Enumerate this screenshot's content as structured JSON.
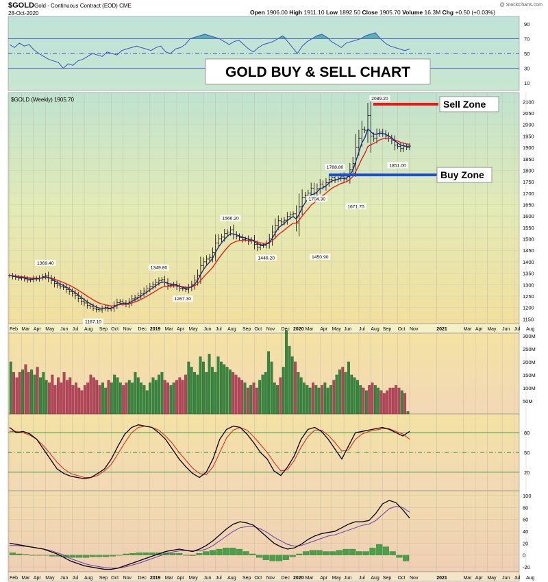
{
  "header": {
    "symbol": "$GOLD",
    "description": "Gold - Continuous Contract (EOD)",
    "exchange": "CME",
    "date": "28-Oct-2020",
    "open_label": "Open",
    "open": "1906.00",
    "high_label": "High",
    "high": "1911.10",
    "low_label": "Low",
    "low": "1892.50",
    "close_label": "Close",
    "close": "1905.70",
    "volume_label": "Volume",
    "volume": "16.3M",
    "chg_label": "Chg",
    "chg": "+0.50 (+0.03%)",
    "watermark": "@ StockCharts.com"
  },
  "overlay": {
    "title": "GOLD BUY & SELL CHART",
    "sell_label": "Sell Zone",
    "buy_label": "Buy Zone",
    "price_legend": "$GOLD (Weekly) 1905.70"
  },
  "colors": {
    "up_bar": "#2e8b3a",
    "down_bar": "#c0405a",
    "ma_fast": "#1f2a8a",
    "ma_slow": "#e02020",
    "sell_line": "#e81818",
    "buy_line": "#1a4fd6",
    "rsi_line": "#3a4fc0",
    "rsi_fill": "#3aa0a0",
    "stoch_k": "#000000",
    "stoch_d": "#e02020",
    "macd_line": "#000000",
    "signal_line": "#6a3ab0",
    "hist": "#4aa04a"
  },
  "chart_data": [
    {
      "type": "line",
      "panel": "rsi",
      "y_ticks": [
        10,
        30,
        50,
        70,
        90
      ],
      "ylim": [
        0,
        100
      ],
      "levels": [
        30,
        50,
        70
      ],
      "values": [
        62,
        58,
        64,
        60,
        62,
        55,
        50,
        46,
        42,
        40,
        38,
        30,
        36,
        34,
        40,
        42,
        46,
        50,
        48,
        46,
        52,
        50,
        48,
        54,
        56,
        58,
        60,
        58,
        56,
        54,
        58,
        60,
        52,
        50,
        56,
        58,
        62,
        70,
        72,
        74,
        76,
        74,
        72,
        70,
        66,
        62,
        66,
        68,
        62,
        56,
        52,
        58,
        62,
        64,
        66,
        70,
        74,
        66,
        58,
        50,
        60,
        66,
        70,
        74,
        76,
        72,
        66,
        62,
        58,
        64,
        66,
        68,
        70,
        74,
        76,
        78,
        70,
        64,
        60,
        58,
        56,
        54,
        56
      ]
    },
    {
      "type": "candlestick",
      "panel": "price",
      "y_ticks": [
        1150,
        1200,
        1250,
        1300,
        1350,
        1400,
        1450,
        1500,
        1550,
        1600,
        1650,
        1700,
        1750,
        1800,
        1850,
        1900,
        1950,
        2000,
        2050,
        2100
      ],
      "ylim": [
        1130,
        2140
      ],
      "x_ticks": [
        "Feb",
        "Mar",
        "Apr",
        "May",
        "Jun",
        "Jul",
        "Aug",
        "Sep",
        "Oct",
        "Nov",
        "Dec",
        "2019",
        "Mar",
        "Apr",
        "May",
        "Jun",
        "Jul",
        "Aug",
        "Sep",
        "Oct",
        "Nov",
        "Dec",
        "2020",
        "Mar",
        "Apr",
        "May",
        "Jun",
        "Jul",
        "Aug",
        "Sep",
        "Oct",
        "Nov",
        "2021",
        "Mar",
        "Apr",
        "May",
        "Jun",
        "Jul",
        "Aug"
      ],
      "x_tick_weeks": [
        0,
        4,
        8,
        12,
        17,
        21,
        25,
        30,
        34,
        38,
        43,
        47,
        52,
        56,
        60,
        65,
        69,
        73,
        78,
        82,
        86,
        91,
        95,
        99,
        104,
        108,
        112,
        117,
        121,
        125,
        130,
        134,
        143,
        152,
        156,
        160,
        165,
        169,
        173
      ],
      "annotations": [
        {
          "week": 12,
          "value": 1369.4,
          "label": "1369.40"
        },
        {
          "week": 28,
          "value": 1167.1,
          "label": "1167.10"
        },
        {
          "week": 50,
          "value": 1349.8,
          "label": "1349.80"
        },
        {
          "week": 58,
          "value": 1267.3,
          "label": "1267.30"
        },
        {
          "week": 74,
          "value": 1566.2,
          "label": "1566.20"
        },
        {
          "week": 86,
          "value": 1446.2,
          "label": "1446.20"
        },
        {
          "week": 103,
          "value": 1704.3,
          "label": "1704.30"
        },
        {
          "week": 104,
          "value": 1450.9,
          "label": "1450.90"
        },
        {
          "week": 109,
          "value": 1788.8,
          "label": "1788.80"
        },
        {
          "week": 116,
          "value": 1671.7,
          "label": "1671.70"
        },
        {
          "week": 124,
          "value": 2089.2,
          "label": "2089.20"
        },
        {
          "week": 130,
          "value": 1851.0,
          "label": "1851.00"
        }
      ],
      "sell_zone": 2089.2,
      "buy_zone": 1780,
      "closes": [
        1340,
        1335,
        1332,
        1328,
        1330,
        1325,
        1320,
        1322,
        1328,
        1325,
        1330,
        1335,
        1340,
        1328,
        1318,
        1305,
        1298,
        1292,
        1288,
        1278,
        1270,
        1262,
        1252,
        1240,
        1228,
        1220,
        1210,
        1205,
        1198,
        1192,
        1190,
        1196,
        1200,
        1194,
        1198,
        1210,
        1222,
        1226,
        1220,
        1214,
        1225,
        1238,
        1244,
        1252,
        1262,
        1272,
        1282,
        1292,
        1300,
        1310,
        1318,
        1322,
        1310,
        1296,
        1298,
        1302,
        1292,
        1284,
        1282,
        1278,
        1288,
        1300,
        1320,
        1342,
        1384,
        1400,
        1412,
        1420,
        1440,
        1482,
        1500,
        1508,
        1524,
        1530,
        1540,
        1520,
        1512,
        1506,
        1498,
        1500,
        1490,
        1495,
        1476,
        1464,
        1470,
        1472,
        1480,
        1500,
        1530,
        1560,
        1580,
        1574,
        1582,
        1598,
        1606,
        1610,
        1570,
        1640,
        1680,
        1690,
        1700,
        1722,
        1700,
        1720,
        1740,
        1730,
        1746,
        1760,
        1770,
        1760,
        1766,
        1774,
        1762,
        1772,
        1802,
        1830,
        1900,
        1940,
        1980,
        1975,
        2040,
        1950,
        1940,
        1960,
        1968,
        1960,
        1950,
        1940,
        1930,
        1910,
        1905,
        1895,
        1905,
        1900,
        1906
      ]
    },
    {
      "type": "bar",
      "panel": "volume",
      "y_ticks": [
        "50M",
        "100M",
        "150M",
        "200M",
        "250M",
        "300M"
      ],
      "y_tick_values": [
        50,
        100,
        150,
        200,
        250,
        300
      ],
      "ylim": [
        0,
        310
      ],
      "values": [
        200,
        160,
        140,
        160,
        170,
        190,
        160,
        170,
        150,
        180,
        140,
        160,
        130,
        120,
        150,
        110,
        140,
        120,
        160,
        130,
        140,
        110,
        120,
        100,
        90,
        110,
        120,
        150,
        140,
        130,
        110,
        120,
        100,
        130,
        120,
        150,
        140,
        120,
        110,
        120,
        130,
        120,
        160,
        140,
        120,
        110,
        90,
        120,
        140,
        130,
        150,
        160,
        130,
        120,
        110,
        120,
        130,
        140,
        130,
        150,
        200,
        180,
        160,
        150,
        220,
        200,
        160,
        230,
        180,
        160,
        220,
        200,
        190,
        180,
        170,
        160,
        150,
        140,
        130,
        120,
        100,
        110,
        120,
        100,
        130,
        150,
        160,
        240,
        200,
        120,
        110,
        140,
        180,
        320,
        260,
        220,
        200,
        160,
        140,
        120,
        110,
        100,
        120,
        110,
        100,
        110,
        120,
        100,
        110,
        130,
        150,
        170,
        180,
        160,
        200,
        150,
        140,
        130,
        110,
        100,
        90,
        110,
        120,
        110,
        100,
        90,
        80,
        90,
        100,
        100,
        110,
        100,
        90,
        80,
        10
      ]
    },
    {
      "type": "line",
      "panel": "stochastic",
      "y_ticks": [
        20,
        50,
        80
      ],
      "ylim": [
        0,
        100
      ],
      "levels": [
        20,
        50,
        80
      ],
      "k_values": [
        88,
        80,
        82,
        78,
        70,
        55,
        40,
        25,
        18,
        14,
        12,
        10,
        12,
        18,
        25,
        40,
        60,
        78,
        88,
        92,
        90,
        88,
        80,
        70,
        55,
        40,
        28,
        18,
        12,
        20,
        40,
        70,
        85,
        90,
        88,
        78,
        65,
        50,
        40,
        22,
        15,
        28,
        45,
        70,
        85,
        88,
        82,
        70,
        55,
        40,
        60,
        80,
        82,
        84,
        86,
        88,
        85,
        80,
        75,
        82
      ],
      "d_values": [
        82,
        82,
        80,
        76,
        70,
        60,
        48,
        35,
        25,
        18,
        15,
        12,
        12,
        15,
        22,
        32,
        48,
        65,
        80,
        88,
        90,
        88,
        84,
        75,
        64,
        50,
        38,
        26,
        18,
        16,
        28,
        50,
        72,
        84,
        88,
        84,
        74,
        62,
        50,
        35,
        22,
        24,
        38,
        58,
        74,
        84,
        84,
        76,
        65,
        52,
        54,
        70,
        78,
        82,
        84,
        86,
        86,
        82,
        78,
        70
      ]
    },
    {
      "type": "line",
      "panel": "macd",
      "y_ticks": [
        -20,
        0,
        20,
        40,
        60,
        80,
        100
      ],
      "ylim": [
        -28,
        108
      ],
      "macd_values": [
        20,
        18,
        16,
        14,
        12,
        10,
        6,
        2,
        -4,
        -10,
        -14,
        -18,
        -20,
        -22,
        -24,
        -24,
        -22,
        -18,
        -14,
        -10,
        -6,
        -2,
        2,
        6,
        8,
        10,
        8,
        6,
        10,
        16,
        24,
        34,
        44,
        52,
        56,
        54,
        50,
        40,
        30,
        20,
        14,
        10,
        12,
        18,
        26,
        32,
        36,
        38,
        40,
        46,
        52,
        56,
        56,
        58,
        70,
        86,
        92,
        88,
        76,
        62
      ],
      "signal_values": [
        16,
        16,
        15,
        14,
        12,
        10,
        8,
        4,
        0,
        -6,
        -10,
        -14,
        -17,
        -19,
        -21,
        -22,
        -22,
        -20,
        -17,
        -14,
        -10,
        -6,
        -2,
        2,
        5,
        7,
        8,
        7,
        7,
        10,
        16,
        24,
        32,
        40,
        46,
        48,
        48,
        44,
        38,
        30,
        24,
        18,
        15,
        16,
        20,
        24,
        28,
        32,
        34,
        38,
        42,
        46,
        50,
        52,
        58,
        68,
        78,
        82,
        80,
        72
      ],
      "hist_values": [
        4,
        2,
        1,
        0,
        0,
        0,
        -2,
        -2,
        -4,
        -4,
        -4,
        -4,
        -3,
        -3,
        -3,
        -2,
        0,
        2,
        3,
        4,
        4,
        4,
        4,
        4,
        3,
        3,
        0,
        -1,
        3,
        6,
        8,
        10,
        12,
        12,
        10,
        6,
        2,
        -4,
        -8,
        -10,
        -10,
        -8,
        -3,
        2,
        6,
        8,
        8,
        6,
        6,
        8,
        10,
        10,
        6,
        6,
        12,
        18,
        14,
        6,
        -4,
        -10
      ]
    }
  ]
}
